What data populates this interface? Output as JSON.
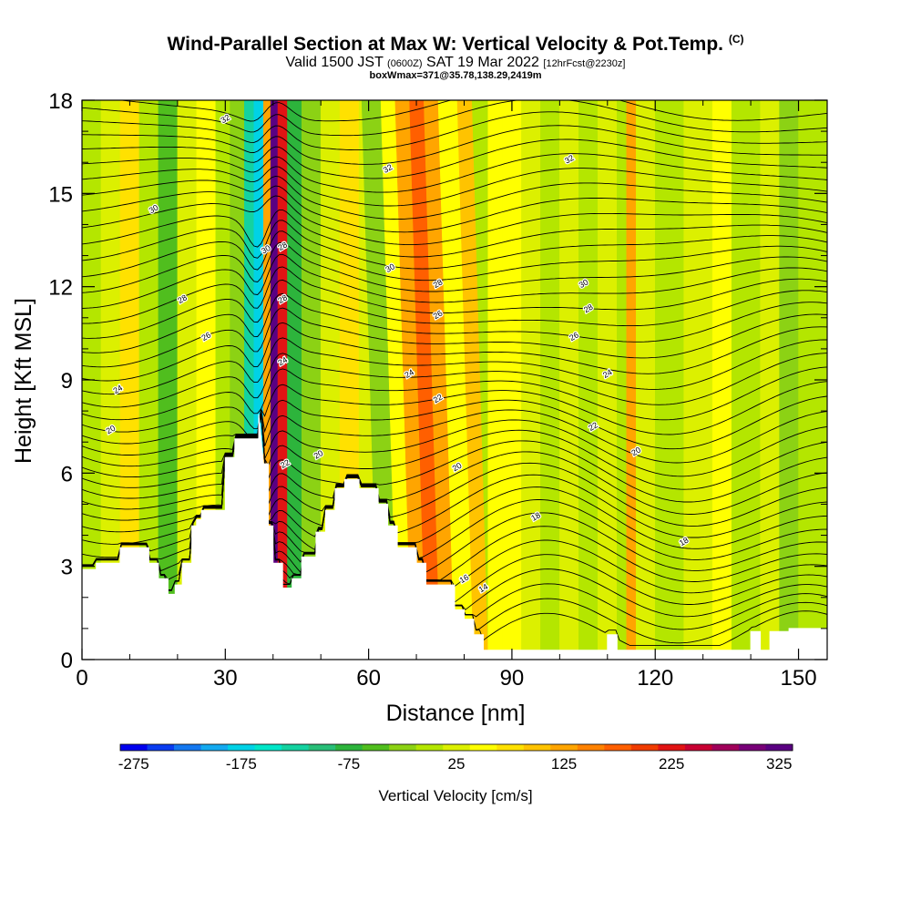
{
  "chart_data": {
    "type": "heatmap",
    "title": "Wind-Parallel Section at Max W: Vertical Velocity & Pot.Temp.",
    "title_mark": "(C)",
    "subtitle_main": "Valid 1500 JST",
    "subtitle_utc": "(0600Z)",
    "subtitle_date": "SAT 19 Mar 2022",
    "subtitle_fcst": "[12hrFcst@2230z]",
    "subtitle2": "boxWmax=371@35.78,138.29,2419m",
    "xlabel": "Distance [nm]",
    "ylabel": "Height [Kft MSL]",
    "xlim": [
      0,
      156
    ],
    "ylim": [
      0,
      18
    ],
    "x_ticks": [
      "0",
      "30",
      "60",
      "90",
      "120",
      "150"
    ],
    "y_ticks": [
      "0",
      "3",
      "6",
      "9",
      "12",
      "15",
      "18"
    ],
    "colorbar": {
      "label": "Vertical Velocity [cm/s]",
      "tick_labels": [
        "-275",
        "-175",
        "-75",
        "25",
        "125",
        "225",
        "325"
      ],
      "colors": [
        "#0000ee",
        "#0a3cf0",
        "#1478f0",
        "#14aaf0",
        "#00d2e6",
        "#00e6c8",
        "#14d2a0",
        "#28be78",
        "#2db43c",
        "#50be1e",
        "#8cd214",
        "#b4e600",
        "#dcf000",
        "#ffff00",
        "#ffe100",
        "#ffc300",
        "#ffa500",
        "#ff8200",
        "#ff5f00",
        "#f03c00",
        "#e11414",
        "#c80032",
        "#a0005a",
        "#780078",
        "#5a0082"
      ]
    },
    "velocity_bands": [
      {
        "x": 0,
        "v": 0
      },
      {
        "x": 4,
        "v": 20
      },
      {
        "x": 8,
        "v": 70
      },
      {
        "x": 12,
        "v": 10
      },
      {
        "x": 16,
        "v": -60
      },
      {
        "x": 20,
        "v": 20
      },
      {
        "x": 24,
        "v": 40
      },
      {
        "x": 28,
        "v": 10
      },
      {
        "x": 31,
        "v": -40
      },
      {
        "x": 34,
        "v": -120
      },
      {
        "x": 36,
        "v": -190
      },
      {
        "x": 38,
        "v": 120
      },
      {
        "x": 39.5,
        "v": 340
      },
      {
        "x": 41,
        "v": 220
      },
      {
        "x": 43,
        "v": -80
      },
      {
        "x": 46,
        "v": -40
      },
      {
        "x": 50,
        "v": 30
      },
      {
        "x": 54,
        "v": 70
      },
      {
        "x": 58,
        "v": 20
      },
      {
        "x": 62,
        "v": -30
      },
      {
        "x": 66,
        "v": 60
      },
      {
        "x": 69,
        "v": 120
      },
      {
        "x": 72,
        "v": 170
      },
      {
        "x": 75,
        "v": 120
      },
      {
        "x": 78,
        "v": 40
      },
      {
        "x": 82,
        "v": 110
      },
      {
        "x": 85,
        "v": 40
      },
      {
        "x": 88,
        "v": 60
      },
      {
        "x": 92,
        "v": 20
      },
      {
        "x": 96,
        "v": 0
      },
      {
        "x": 100,
        "v": 20
      },
      {
        "x": 104,
        "v": 0
      },
      {
        "x": 108,
        "v": 30
      },
      {
        "x": 112,
        "v": 10
      },
      {
        "x": 114,
        "v": 140
      },
      {
        "x": 116,
        "v": 20
      },
      {
        "x": 120,
        "v": 0
      },
      {
        "x": 126,
        "v": 20
      },
      {
        "x": 132,
        "v": 40
      },
      {
        "x": 136,
        "v": 0
      },
      {
        "x": 142,
        "v": 20
      },
      {
        "x": 146,
        "v": -30
      },
      {
        "x": 150,
        "v": 10
      },
      {
        "x": 156,
        "v": 0
      }
    ],
    "terrain": [
      [
        0,
        2.9
      ],
      [
        3,
        2.9
      ],
      [
        3,
        3.1
      ],
      [
        8,
        3.1
      ],
      [
        8,
        3.6
      ],
      [
        14,
        3.6
      ],
      [
        14,
        3.1
      ],
      [
        16,
        3.1
      ],
      [
        16,
        2.6
      ],
      [
        18,
        2.6
      ],
      [
        18,
        2.1
      ],
      [
        19.5,
        2.1
      ],
      [
        19.5,
        2.4
      ],
      [
        21,
        2.4
      ],
      [
        21,
        3.1
      ],
      [
        23,
        3.1
      ],
      [
        23,
        4.3
      ],
      [
        24,
        4.3
      ],
      [
        24,
        4.5
      ],
      [
        25,
        4.5
      ],
      [
        25,
        4.8
      ],
      [
        30,
        4.8
      ],
      [
        30,
        6.5
      ],
      [
        32,
        6.5
      ],
      [
        32,
        7.1
      ],
      [
        37,
        7.1
      ],
      [
        37,
        7.9
      ],
      [
        38,
        6.3
      ],
      [
        39,
        6.3
      ],
      [
        39,
        4.3
      ],
      [
        40,
        4.3
      ],
      [
        40,
        3.1
      ],
      [
        42,
        3.1
      ],
      [
        42,
        2.3
      ],
      [
        44,
        2.3
      ],
      [
        44,
        2.6
      ],
      [
        46,
        2.6
      ],
      [
        46,
        3.3
      ],
      [
        49,
        3.3
      ],
      [
        49,
        4.1
      ],
      [
        51,
        4.1
      ],
      [
        51,
        4.8
      ],
      [
        53,
        4.8
      ],
      [
        53,
        5.5
      ],
      [
        55,
        5.5
      ],
      [
        55,
        5.8
      ],
      [
        58,
        5.8
      ],
      [
        58,
        5.5
      ],
      [
        62,
        5.5
      ],
      [
        62,
        5.0
      ],
      [
        64,
        5.0
      ],
      [
        64,
        4.3
      ],
      [
        66,
        4.3
      ],
      [
        66,
        3.6
      ],
      [
        70,
        3.6
      ],
      [
        70,
        3.1
      ],
      [
        72,
        3.1
      ],
      [
        72,
        2.4
      ],
      [
        78,
        2.4
      ],
      [
        78,
        1.6
      ],
      [
        80,
        1.6
      ],
      [
        80,
        1.3
      ],
      [
        82,
        1.3
      ],
      [
        82,
        0.8
      ],
      [
        84,
        0.8
      ],
      [
        84,
        0.3
      ],
      [
        110,
        0.3
      ],
      [
        110,
        0.8
      ],
      [
        112,
        0.8
      ],
      [
        112,
        0.3
      ],
      [
        140,
        0.3
      ],
      [
        140,
        0.9
      ],
      [
        142,
        0.9
      ],
      [
        142,
        0.3
      ],
      [
        144,
        0.3
      ],
      [
        144,
        0.9
      ],
      [
        148,
        0.9
      ],
      [
        148,
        1.0
      ],
      [
        156,
        1.0
      ]
    ],
    "contour_levels": [
      "14",
      "16",
      "18",
      "20",
      "22",
      "24",
      "26",
      "28",
      "30",
      "32"
    ],
    "contour_labels": [
      {
        "text": "32",
        "x": 30,
        "y": 17.4
      },
      {
        "text": "32",
        "x": 64,
        "y": 15.8
      },
      {
        "text": "32",
        "x": 102,
        "y": 16.1
      },
      {
        "text": "30",
        "x": 15,
        "y": 14.5
      },
      {
        "text": "30",
        "x": 38.5,
        "y": 13.2
      },
      {
        "text": "30",
        "x": 64.5,
        "y": 12.6
      },
      {
        "text": "30",
        "x": 105,
        "y": 12.1
      },
      {
        "text": "28",
        "x": 42,
        "y": 13.3
      },
      {
        "text": "28",
        "x": 21,
        "y": 11.6
      },
      {
        "text": "28",
        "x": 42,
        "y": 11.6
      },
      {
        "text": "28",
        "x": 74.5,
        "y": 12.1
      },
      {
        "text": "28",
        "x": 106,
        "y": 11.3
      },
      {
        "text": "26",
        "x": 26,
        "y": 10.4
      },
      {
        "text": "26",
        "x": 74.5,
        "y": 11.1
      },
      {
        "text": "26",
        "x": 103,
        "y": 10.4
      },
      {
        "text": "24",
        "x": 42,
        "y": 9.6
      },
      {
        "text": "24",
        "x": 7.5,
        "y": 8.7
      },
      {
        "text": "24",
        "x": 68.5,
        "y": 9.2
      },
      {
        "text": "24",
        "x": 110,
        "y": 9.2
      },
      {
        "text": "22",
        "x": 74.5,
        "y": 8.4
      },
      {
        "text": "22",
        "x": 107,
        "y": 7.5
      },
      {
        "text": "22",
        "x": 42.5,
        "y": 6.3
      },
      {
        "text": "20",
        "x": 6,
        "y": 7.4
      },
      {
        "text": "20",
        "x": 49.5,
        "y": 6.6
      },
      {
        "text": "20",
        "x": 78.5,
        "y": 6.2
      },
      {
        "text": "20",
        "x": 116,
        "y": 6.7
      },
      {
        "text": "18",
        "x": 95,
        "y": 4.6
      },
      {
        "text": "18",
        "x": 126,
        "y": 3.8
      },
      {
        "text": "16",
        "x": 80,
        "y": 2.6
      },
      {
        "text": "14",
        "x": 84,
        "y": 2.3
      }
    ],
    "grid": false
  }
}
